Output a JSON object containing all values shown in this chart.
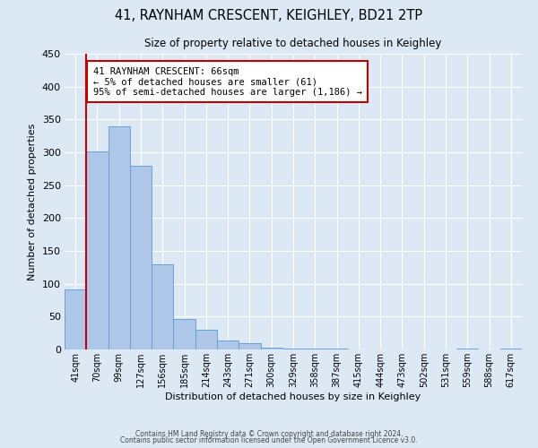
{
  "title": "41, RAYNHAM CRESCENT, KEIGHLEY, BD21 2TP",
  "subtitle": "Size of property relative to detached houses in Keighley",
  "xlabel": "Distribution of detached houses by size in Keighley",
  "ylabel": "Number of detached properties",
  "bin_labels": [
    "41sqm",
    "70sqm",
    "99sqm",
    "127sqm",
    "156sqm",
    "185sqm",
    "214sqm",
    "243sqm",
    "271sqm",
    "300sqm",
    "329sqm",
    "358sqm",
    "387sqm",
    "415sqm",
    "444sqm",
    "473sqm",
    "502sqm",
    "531sqm",
    "559sqm",
    "588sqm",
    "617sqm"
  ],
  "bar_heights": [
    92,
    301,
    340,
    280,
    130,
    47,
    30,
    13,
    10,
    3,
    2,
    2,
    2,
    0,
    0,
    0,
    0,
    0,
    2,
    0,
    2
  ],
  "bar_color": "#aec6e8",
  "bar_edge_color": "#5b9bd5",
  "background_color": "#dce9f5",
  "plot_bg_color": "#dce9f5",
  "grid_color": "#ffffff",
  "vline_x": 1,
  "vline_color": "#c00000",
  "annotation_line1": "41 RAYNHAM CRESCENT: 66sqm",
  "annotation_line2": "← 5% of detached houses are smaller (61)",
  "annotation_line3": "95% of semi-detached houses are larger (1,186) →",
  "annotation_box_color": "#ffffff",
  "annotation_box_edge_color": "#c00000",
  "ylim": [
    0,
    450
  ],
  "yticks": [
    0,
    50,
    100,
    150,
    200,
    250,
    300,
    350,
    400,
    450
  ],
  "footer1": "Contains HM Land Registry data © Crown copyright and database right 2024.",
  "footer2": "Contains public sector information licensed under the Open Government Licence v3.0."
}
